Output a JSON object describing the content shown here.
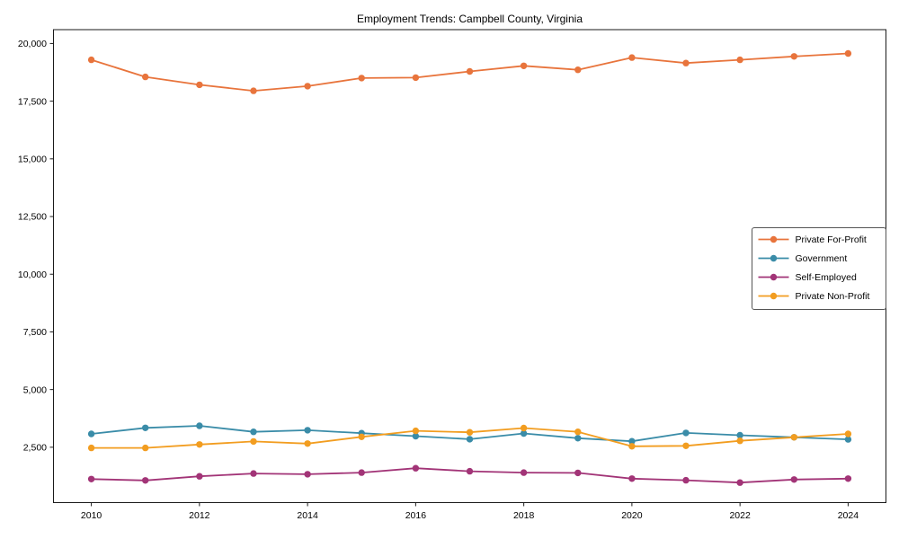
{
  "title": "Employment Trends: Campbell County, Virginia",
  "chart_data": {
    "type": "line",
    "x": [
      2010,
      2011,
      2012,
      2013,
      2014,
      2015,
      2016,
      2017,
      2018,
      2019,
      2020,
      2021,
      2022,
      2023,
      2024
    ],
    "series": [
      {
        "name": "Private For-Profit",
        "color": "#E8743C",
        "values": [
          19290,
          18550,
          18210,
          17950,
          18150,
          18500,
          18520,
          18790,
          19030,
          18860,
          19390,
          19150,
          19290,
          19440,
          19570
        ]
      },
      {
        "name": "Government",
        "color": "#3A8CA8",
        "values": [
          3080,
          3340,
          3430,
          3170,
          3240,
          3110,
          2980,
          2850,
          3100,
          2890,
          2760,
          3120,
          3020,
          2930,
          2840
        ]
      },
      {
        "name": "Self-Employed",
        "color": "#A23477",
        "values": [
          1120,
          1060,
          1240,
          1360,
          1330,
          1400,
          1590,
          1460,
          1400,
          1390,
          1140,
          1070,
          970,
          1100,
          1140
        ]
      },
      {
        "name": "Private Non-Profit",
        "color": "#F29D20",
        "values": [
          2470,
          2470,
          2620,
          2750,
          2660,
          2950,
          3210,
          3150,
          3330,
          3170,
          2540,
          2560,
          2780,
          2930,
          3080
        ]
      }
    ],
    "xticks": [
      2010,
      2012,
      2014,
      2016,
      2018,
      2020,
      2022,
      2024
    ],
    "yticks": [
      2500,
      5000,
      7500,
      10000,
      12500,
      15000,
      17500,
      20000
    ],
    "ytick_labels": [
      "2,500",
      "5,000",
      "7,500",
      "10,000",
      "12,500",
      "15,000",
      "17,500",
      "20,000"
    ],
    "xlim": [
      2009.3,
      2024.7
    ],
    "ylim": [
      100,
      20600
    ],
    "grid": false,
    "legend_position": "right-middle",
    "axis_color": "#1a1a1a"
  }
}
